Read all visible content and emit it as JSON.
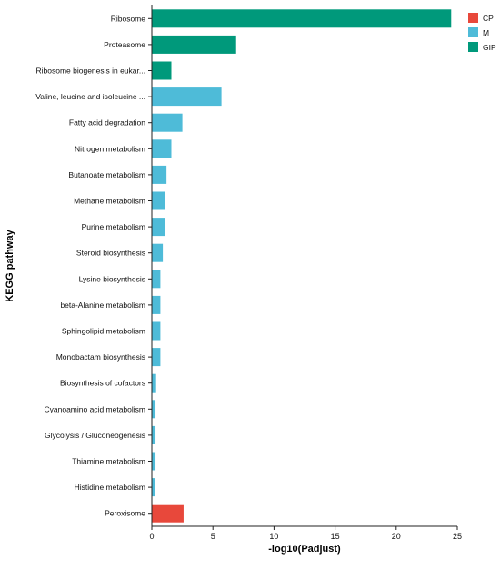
{
  "chart_data": {
    "type": "bar",
    "orientation": "horizontal",
    "title": "",
    "xlabel": "-log10(Padjust)",
    "ylabel": "KEGG pathway",
    "xlim": [
      0,
      25
    ],
    "xticks": [
      0,
      5,
      10,
      15,
      20,
      25
    ],
    "grid": false,
    "legend": {
      "position": "top-right",
      "entries": [
        {
          "name": "CP",
          "color": "#e8483b"
        },
        {
          "name": "M",
          "color": "#4ebbd8"
        },
        {
          "name": "GIP",
          "color": "#00997b"
        }
      ]
    },
    "categories": [
      "Ribosome",
      "Proteasome",
      "Ribosome biogenesis in eukar...",
      "Valine, leucine and isoleucine ...",
      "Fatty acid degradation",
      "Nitrogen metabolism",
      "Butanoate metabolism",
      "Methane metabolism",
      "Purine metabolism",
      "Steroid biosynthesis",
      "Lysine biosynthesis",
      "beta-Alanine metabolism",
      "Sphingolipid metabolism",
      "Monobactam biosynthesis",
      "Biosynthesis of cofactors",
      "Cyanoamino acid metabolism",
      "Glycolysis / Gluconeogenesis",
      "Thiamine metabolism",
      "Histidine metabolism",
      "Peroxisome"
    ],
    "values": [
      24.5,
      6.9,
      1.6,
      5.7,
      2.5,
      1.6,
      1.2,
      1.1,
      1.1,
      0.9,
      0.7,
      0.7,
      0.7,
      0.7,
      0.35,
      0.3,
      0.3,
      0.3,
      0.25,
      2.6
    ],
    "groups": [
      "GIP",
      "GIP",
      "GIP",
      "M",
      "M",
      "M",
      "M",
      "M",
      "M",
      "M",
      "M",
      "M",
      "M",
      "M",
      "M",
      "M",
      "M",
      "M",
      "M",
      "CP"
    ]
  }
}
